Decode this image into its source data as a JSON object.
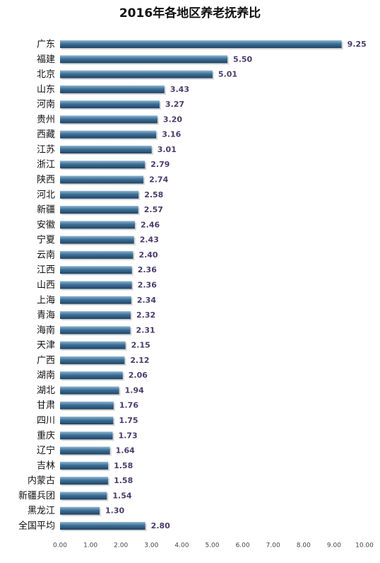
{
  "chart_data": {
    "type": "hbar",
    "title": "2016年各地区养老抚养比",
    "categories": [
      "广东",
      "福建",
      "北京",
      "山东",
      "河南",
      "贵州",
      "西藏",
      "江苏",
      "浙江",
      "陕西",
      "河北",
      "新疆",
      "安徽",
      "宁夏",
      "云南",
      "江西",
      "山西",
      "上海",
      "青海",
      "海南",
      "天津",
      "广西",
      "湖南",
      "湖北",
      "甘肃",
      "四川",
      "重庆",
      "辽宁",
      "吉林",
      "内蒙古",
      "新疆兵团",
      "黑龙江",
      "全国平均"
    ],
    "values": [
      9.25,
      5.5,
      5.01,
      3.43,
      3.27,
      3.2,
      3.16,
      3.01,
      2.79,
      2.74,
      2.58,
      2.57,
      2.46,
      2.43,
      2.4,
      2.36,
      2.36,
      2.34,
      2.32,
      2.31,
      2.15,
      2.12,
      2.06,
      1.94,
      1.76,
      1.75,
      1.73,
      1.64,
      1.58,
      1.58,
      1.54,
      1.3,
      2.8
    ],
    "value_labels": [
      "9.25",
      "5.50",
      "5.01",
      "3.43",
      "3.27",
      "3.20",
      "3.16",
      "3.01",
      "2.79",
      "2.74",
      "2.58",
      "2.57",
      "2.46",
      "2.43",
      "2.40",
      "2.36",
      "2.36",
      "2.34",
      "2.32",
      "2.31",
      "2.15",
      "2.12",
      "2.06",
      "1.94",
      "1.76",
      "1.75",
      "1.73",
      "1.64",
      "1.58",
      "1.58",
      "1.54",
      "1.30",
      "2.80"
    ],
    "color": "#3d6f96",
    "xlim": [
      0,
      10
    ],
    "xticks": [
      {
        "value": 0,
        "label": "0.00"
      },
      {
        "value": 1,
        "label": "1.00"
      },
      {
        "value": 2,
        "label": "2.00"
      },
      {
        "value": 3,
        "label": "3.00"
      },
      {
        "value": 4,
        "label": "4.00"
      },
      {
        "value": 5,
        "label": "5.00"
      },
      {
        "value": 6,
        "label": "6.00"
      },
      {
        "value": 7,
        "label": "7.00"
      },
      {
        "value": 8,
        "label": "8.00"
      },
      {
        "value": 9,
        "label": "9.00"
      },
      {
        "value": 10,
        "label": "10.00"
      }
    ],
    "grid": false
  }
}
